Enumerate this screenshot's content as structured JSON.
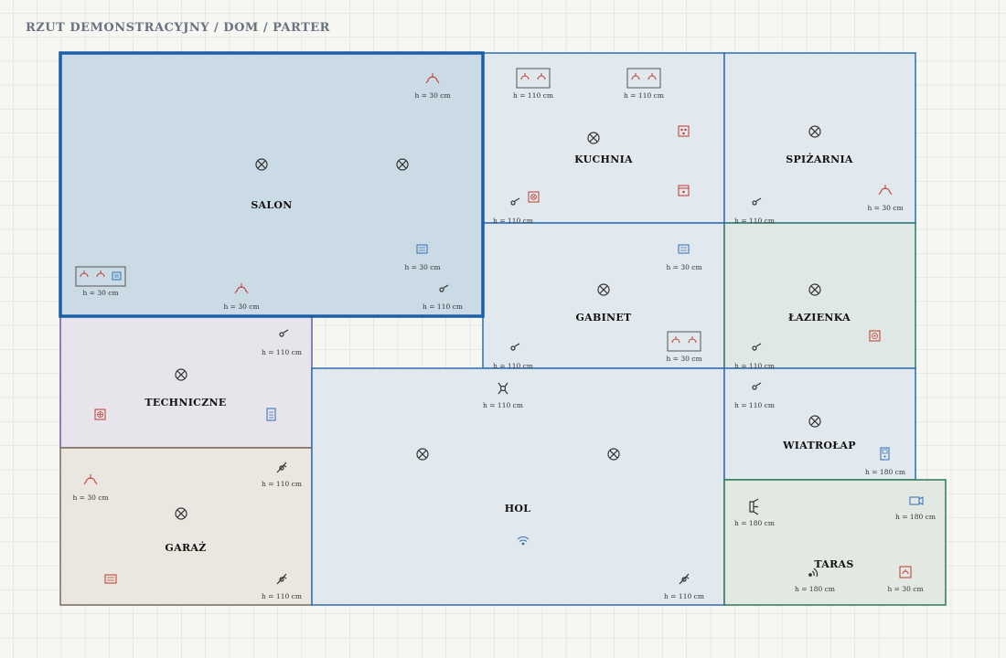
{
  "title": "RZUT DEMONSTRACYJNY / DOM / PARTER",
  "colors": {
    "background": "#f6f6f2",
    "grid": "#dedeD8",
    "salon_fill": "#cadbe5",
    "salon_border": "#1b5fa6",
    "room_fill_blue": "#e2e9ee",
    "room_border_blue": "#2f6db5",
    "lazienka_fill": "#e0e8e6",
    "lazienka_border": "#2d7a6d",
    "techniczne_fill": "#e7e4ec",
    "techniczne_border": "#6a5aa5",
    "garaz_fill": "#eae7e1",
    "garaz_border": "#7a6a5a",
    "taras_fill": "#e2e9e2",
    "taras_border": "#2f7a52",
    "symbol_red": "#c0392b",
    "symbol_blue": "#2f6db5",
    "symbol_dark": "#333333"
  },
  "rooms": {
    "salon": "SALON",
    "kuchnia": "KUCHNIA",
    "spizarnia": "SPIŻARNIA",
    "gabinet": "GABINET",
    "lazienka": "ŁAZIENKA",
    "techniczne": "TECHNICZNE",
    "hol": "HOL",
    "wiatrolap": "WIATROŁAP",
    "garaz": "GARAŻ",
    "taras": "TARAS"
  },
  "heights": {
    "h30": "h = 30 cm",
    "h110": "h = 110 cm",
    "h180": "h = 180 cm"
  }
}
